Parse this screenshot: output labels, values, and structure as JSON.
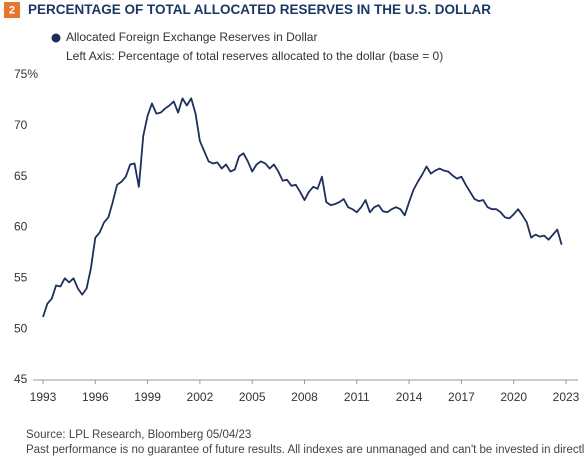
{
  "chart_data": {
    "type": "line",
    "badge": "2",
    "title": "PERCENTAGE OF TOTAL ALLOCATED RESERVES IN THE U.S. DOLLAR",
    "subtitle": "Left Axis: Percentage of total reserves allocated to the dollar (base = 0)",
    "source": "Source: LPL Research, Bloomberg  05/04/23",
    "disclaimer": "Past performance is no guarantee of future results. All indexes are unmanaged and can't be invested in directly.",
    "x": [
      1993,
      1993.25,
      1993.5,
      1993.75,
      1994,
      1994.25,
      1994.5,
      1994.75,
      1995,
      1995.25,
      1995.5,
      1995.75,
      1996,
      1996.25,
      1996.5,
      1996.75,
      1997,
      1997.25,
      1997.5,
      1997.75,
      1998,
      1998.25,
      1998.5,
      1998.75,
      1999,
      1999.25,
      1999.5,
      1999.75,
      2000,
      2000.25,
      2000.5,
      2000.75,
      2001,
      2001.25,
      2001.5,
      2001.75,
      2002,
      2002.25,
      2002.5,
      2002.75,
      2003,
      2003.25,
      2003.5,
      2003.75,
      2004,
      2004.25,
      2004.5,
      2004.75,
      2005,
      2005.25,
      2005.5,
      2005.75,
      2006,
      2006.25,
      2006.5,
      2006.75,
      2007,
      2007.25,
      2007.5,
      2007.75,
      2008,
      2008.25,
      2008.5,
      2008.75,
      2009,
      2009.25,
      2009.5,
      2009.75,
      2010,
      2010.25,
      2010.5,
      2010.75,
      2011,
      2011.25,
      2011.5,
      2011.75,
      2012,
      2012.25,
      2012.5,
      2012.75,
      2013,
      2013.25,
      2013.5,
      2013.75,
      2014,
      2014.25,
      2014.5,
      2014.75,
      2015,
      2015.25,
      2015.5,
      2015.75,
      2016,
      2016.25,
      2016.5,
      2016.75,
      2017,
      2017.25,
      2017.5,
      2017.75,
      2018,
      2018.25,
      2018.5,
      2018.75,
      2019,
      2019.25,
      2019.5,
      2019.75,
      2020,
      2020.25,
      2020.5,
      2020.75,
      2021,
      2021.25,
      2021.5,
      2021.75,
      2022,
      2022.25,
      2022.5,
      2022.75
    ],
    "series": [
      {
        "name": "Allocated Foreign Exchange Reserves in Dollar",
        "color": "#1f2f5c",
        "values": [
          51.2,
          52.5,
          53,
          54.3,
          54.2,
          55,
          54.6,
          55,
          54,
          53.4,
          54,
          56,
          59,
          59.5,
          60.5,
          61,
          62.5,
          64.2,
          64.5,
          65,
          66.2,
          66.3,
          64,
          69,
          71,
          72.2,
          71.2,
          71.3,
          71.7,
          72,
          72.4,
          71.3,
          72.7,
          72,
          72.7,
          71.2,
          68.5,
          67.5,
          66.5,
          66.3,
          66.4,
          65.8,
          66.2,
          65.5,
          65.7,
          67,
          67.3,
          66.5,
          65.5,
          66.2,
          66.5,
          66.3,
          65.8,
          66.2,
          65.5,
          64.6,
          64.7,
          64.1,
          64.2,
          63.5,
          62.7,
          63.5,
          64,
          63.8,
          65,
          62.5,
          62.2,
          62.3,
          62.5,
          62.8,
          62,
          61.8,
          61.5,
          62,
          62.7,
          61.5,
          62,
          62.2,
          61.6,
          61.5,
          61.8,
          62,
          61.8,
          61.2,
          62.5,
          63.7,
          64.5,
          65.2,
          66,
          65.3,
          65.6,
          65.8,
          65.6,
          65.5,
          65.1,
          64.8,
          65,
          64.2,
          63.5,
          62.8,
          62.6,
          62.7,
          62,
          61.8,
          61.8,
          61.5,
          61,
          60.9,
          61.3,
          61.8,
          61.2,
          60.5,
          59,
          59.3,
          59.1,
          59.2,
          58.8,
          59.3,
          59.8,
          58.3
        ]
      }
    ],
    "xlim": [
      1993,
      2023
    ],
    "xticks": [
      1993,
      1996,
      1999,
      2002,
      2005,
      2008,
      2011,
      2014,
      2017,
      2020,
      2023
    ],
    "ylim": [
      45,
      75
    ],
    "yticks": [
      45,
      50,
      55,
      60,
      65,
      70,
      {
        "value": 75,
        "label": "75%"
      }
    ],
    "grid": false
  }
}
